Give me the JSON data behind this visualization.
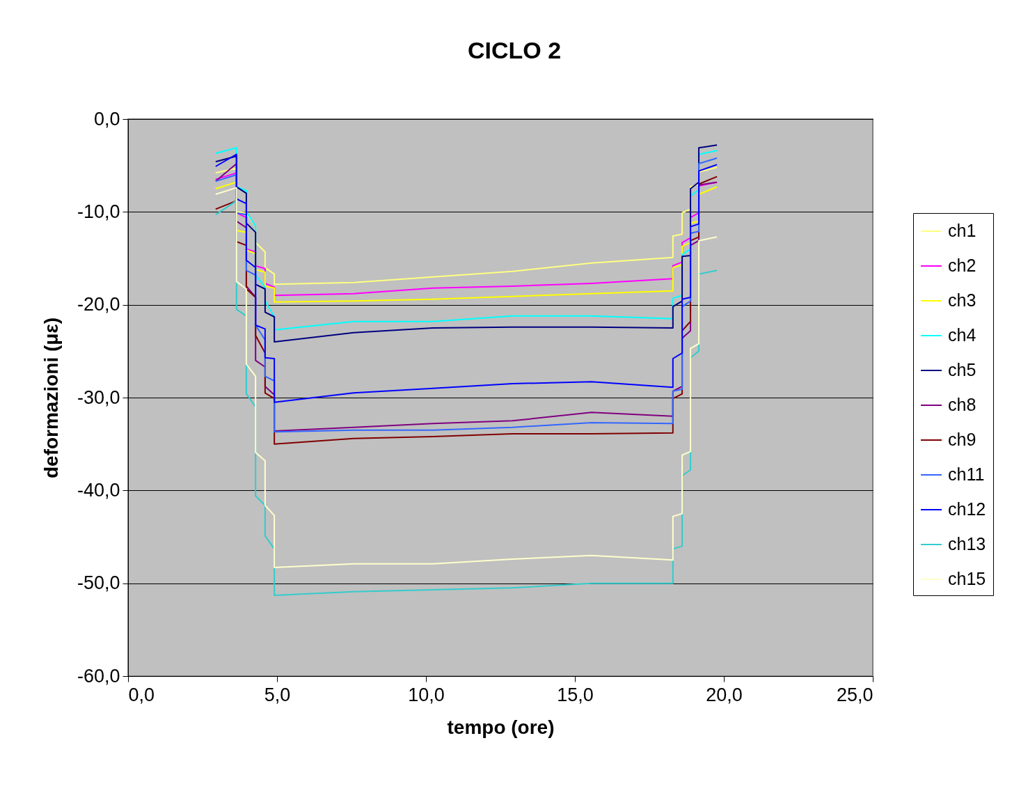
{
  "chart_data": {
    "type": "line",
    "title": "CICLO 2",
    "xlabel": "tempo (ore)",
    "ylabel": "deformazioni (με)",
    "x": [
      2.94,
      3.64,
      3.64,
      3.97,
      3.97,
      4.28,
      4.28,
      4.6,
      4.6,
      4.91,
      4.91,
      7.57,
      10.23,
      12.9,
      15.56,
      18.29,
      18.29,
      18.6,
      18.6,
      18.88,
      18.88,
      19.16,
      19.16,
      19.77
    ],
    "series": [
      {
        "name": "ch1",
        "color": "#ffff80",
        "values": [
          -5.8,
          -5.3,
          -10.0,
          -10.1,
          -10.2,
          -11.5,
          -13.3,
          -14.3,
          -16.0,
          -16.7,
          -17.8,
          -17.6,
          -17.0,
          -16.4,
          -15.5,
          -14.9,
          -12.6,
          -12.4,
          -10.1,
          -9.7,
          -7.3,
          -7.0,
          -5.7,
          -5.2
        ]
      },
      {
        "name": "ch2",
        "color": "#ff00ff",
        "values": [
          -6.5,
          -5.8,
          -10.1,
          -10.6,
          -14.0,
          -14.3,
          -15.8,
          -16.1,
          -17.7,
          -18.1,
          -19.0,
          -18.8,
          -18.2,
          -18.0,
          -17.7,
          -17.2,
          -15.8,
          -15.4,
          -13.3,
          -12.8,
          -10.6,
          -10.1,
          -7.2,
          -6.8
        ]
      },
      {
        "name": "ch3",
        "color": "#ffff00",
        "values": [
          -7.5,
          -6.8,
          -12.0,
          -12.2,
          -14.1,
          -14.5,
          -16.2,
          -16.5,
          -18.0,
          -18.2,
          -19.7,
          -19.6,
          -19.4,
          -19.1,
          -18.8,
          -18.5,
          -16.0,
          -15.7,
          -13.7,
          -13.3,
          -11.2,
          -11.0,
          -8.1,
          -7.3
        ]
      },
      {
        "name": "ch4",
        "color": "#00ffff",
        "values": [
          -3.7,
          -3.1,
          -7.3,
          -7.7,
          -10.0,
          -11.5,
          -16.8,
          -18.1,
          -19.6,
          -21.3,
          -22.7,
          -21.8,
          -21.8,
          -21.2,
          -21.2,
          -21.5,
          -19.3,
          -19.0,
          -14.6,
          -14.0,
          -8.3,
          -7.6,
          -3.8,
          -3.4
        ]
      },
      {
        "name": "ch5",
        "color": "#000080",
        "values": [
          -4.6,
          -4.0,
          -7.3,
          -8.0,
          -11.2,
          -12.2,
          -17.8,
          -18.3,
          -20.8,
          -21.3,
          -24.0,
          -23.0,
          -22.5,
          -22.4,
          -22.4,
          -22.5,
          -20.2,
          -19.6,
          -14.8,
          -14.7,
          -7.5,
          -6.8,
          -3.1,
          -2.8
        ]
      },
      {
        "name": "ch8",
        "color": "#800080",
        "values": [
          -6.7,
          -4.8,
          -11.0,
          -11.7,
          -18.0,
          -19.2,
          -26.0,
          -26.7,
          -28.8,
          -29.7,
          -33.6,
          -33.2,
          -32.8,
          -32.5,
          -31.6,
          -32.0,
          -29.3,
          -28.8,
          -23.6,
          -22.8,
          -13.6,
          -13.1,
          -7.1,
          -6.8
        ]
      },
      {
        "name": "ch9",
        "color": "#800000",
        "values": [
          -9.7,
          -8.8,
          -13.2,
          -13.6,
          -18.3,
          -19.2,
          -23.3,
          -25.2,
          -29.5,
          -30.1,
          -35.0,
          -34.4,
          -34.2,
          -33.9,
          -33.9,
          -33.8,
          -30.1,
          -29.6,
          -22.8,
          -21.8,
          -13.1,
          -12.7,
          -7.0,
          -6.2
        ]
      },
      {
        "name": "ch11",
        "color": "#3366ff",
        "values": [
          -6.7,
          -6.0,
          -10.1,
          -10.3,
          -16.3,
          -16.8,
          -22.2,
          -23.8,
          -27.7,
          -28.2,
          -33.7,
          -33.5,
          -33.5,
          -33.2,
          -32.7,
          -32.8,
          -29.3,
          -29.1,
          -20.2,
          -19.6,
          -12.3,
          -12.1,
          -4.8,
          -4.2
        ]
      },
      {
        "name": "ch12",
        "color": "#0000ff",
        "values": [
          -5.1,
          -3.8,
          -8.6,
          -9.1,
          -15.2,
          -16.0,
          -22.2,
          -22.6,
          -25.7,
          -25.8,
          -30.5,
          -29.5,
          -29.0,
          -28.5,
          -28.3,
          -28.9,
          -25.8,
          -25.2,
          -19.4,
          -19.2,
          -11.6,
          -11.3,
          -5.6,
          -4.9
        ]
      },
      {
        "name": "ch13",
        "color": "#33cccc",
        "values": [
          -10.3,
          -8.8,
          -20.5,
          -21.2,
          -29.6,
          -31.0,
          -40.6,
          -41.6,
          -44.9,
          -46.3,
          -51.3,
          -50.9,
          -50.7,
          -50.5,
          -50.0,
          -50.0,
          -46.3,
          -46.0,
          -38.4,
          -37.8,
          -25.7,
          -25.0,
          -16.7,
          -16.3
        ]
      },
      {
        "name": "ch15",
        "color": "#ffffcc",
        "values": [
          -8.1,
          -7.4,
          -17.5,
          -18.3,
          -26.4,
          -27.7,
          -35.9,
          -36.8,
          -41.6,
          -42.7,
          -48.3,
          -47.9,
          -47.9,
          -47.4,
          -47.0,
          -47.5,
          -42.8,
          -42.5,
          -36.2,
          -35.8,
          -24.7,
          -24.2,
          -13.1,
          -12.7
        ]
      }
    ],
    "xlim": [
      0,
      25
    ],
    "xticks": [
      {
        "value": 0,
        "label": "0,0"
      },
      {
        "value": 5,
        "label": "5,0"
      },
      {
        "value": 10,
        "label": "10,0"
      },
      {
        "value": 15,
        "label": "15,0"
      },
      {
        "value": 20,
        "label": "20,0"
      },
      {
        "value": 25,
        "label": "25,0"
      }
    ],
    "ylim": [
      -60,
      0
    ],
    "yticks": [
      {
        "value": 0,
        "label": "0,0"
      },
      {
        "value": -10,
        "label": "-10,0"
      },
      {
        "value": -20,
        "label": "-20,0"
      },
      {
        "value": -30,
        "label": "-30,0"
      },
      {
        "value": -40,
        "label": "-40,0"
      },
      {
        "value": -50,
        "label": "-50,0"
      },
      {
        "value": -60,
        "label": "-60,0"
      }
    ],
    "grid": "y",
    "legend": "right"
  }
}
